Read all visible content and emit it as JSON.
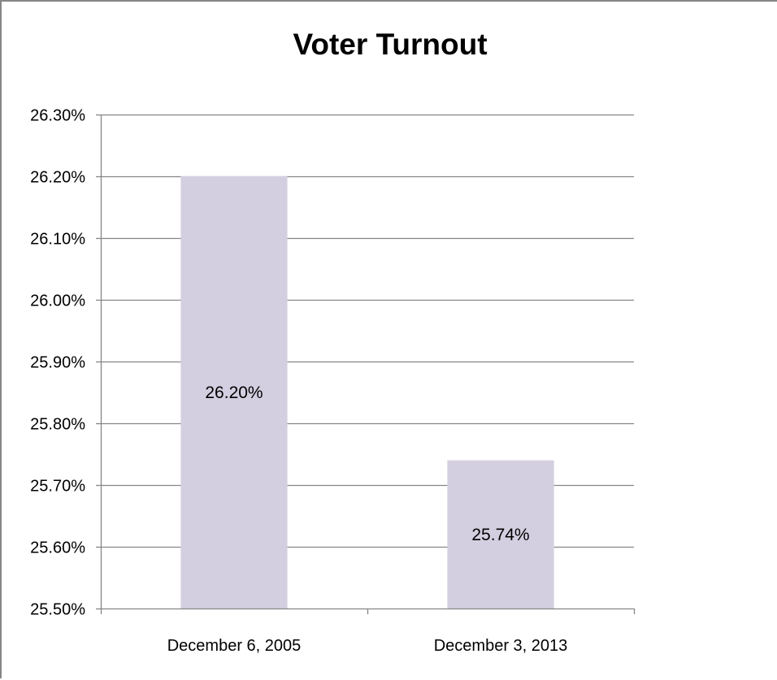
{
  "chart_data": {
    "type": "bar",
    "title": "Voter Turnout",
    "xlabel": "",
    "ylabel": "",
    "categories": [
      "December 6, 2005",
      "December 3, 2013"
    ],
    "values": [
      26.2,
      25.74
    ],
    "data_labels": [
      "26.20%",
      "25.74%"
    ],
    "ylim": [
      25.5,
      26.3
    ],
    "y_ticks": [
      25.5,
      25.6,
      25.7,
      25.8,
      25.9,
      26.0,
      26.1,
      26.2,
      26.3
    ],
    "y_tick_labels": [
      "25.50%",
      "25.60%",
      "25.70%",
      "25.80%",
      "25.90%",
      "26.00%",
      "26.10%",
      "26.20%",
      "26.30%"
    ],
    "grid": true,
    "legend": "none",
    "bar_color": "#d4cfe0",
    "grid_color": "#868686"
  }
}
